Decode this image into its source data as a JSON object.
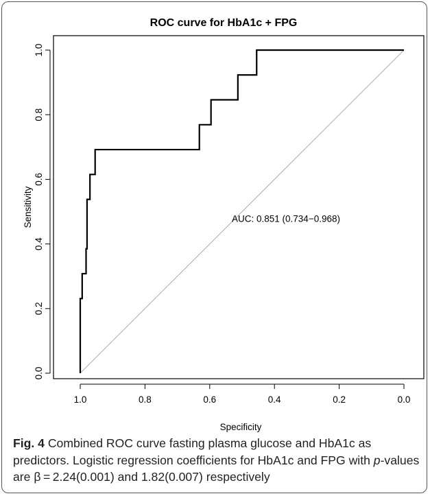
{
  "chart_data": {
    "type": "line",
    "title": "ROC curve for HbA1c + FPG",
    "xlabel": "Specificity",
    "ylabel": "Sensitivity",
    "xlim": [
      1.0,
      0.0
    ],
    "ylim": [
      0.0,
      1.0
    ],
    "x_reversed": true,
    "xticks": [
      1.0,
      0.8,
      0.6,
      0.4,
      0.2,
      0.0
    ],
    "xtick_labels": [
      "1.0",
      "0.8",
      "0.6",
      "0.4",
      "0.2",
      "0.0"
    ],
    "yticks": [
      0.0,
      0.2,
      0.4,
      0.6,
      0.8,
      1.0
    ],
    "ytick_labels": [
      "0.0",
      "0.2",
      "0.4",
      "0.6",
      "0.8",
      "1.0"
    ],
    "grid": false,
    "annotation": "AUC: 0.851 (0.734−0.968)",
    "annotation_pos": {
      "x": 0.5,
      "y": 0.5
    },
    "series": [
      {
        "color": "#000000",
        "x": [
          1.0,
          1.0,
          0.994,
          0.994,
          0.982,
          0.982,
          0.979,
          0.979,
          0.976,
          0.976,
          0.97,
          0.97,
          0.954,
          0.954,
          0.632,
          0.632,
          0.614,
          0.614,
          0.596,
          0.596,
          0.513,
          0.513,
          0.471,
          0.471,
          0.455,
          0.455,
          0.0
        ],
        "y": [
          0.0,
          0.231,
          0.231,
          0.308,
          0.308,
          0.385,
          0.385,
          0.538,
          0.538,
          0.538,
          0.538,
          0.615,
          0.615,
          0.692,
          0.692,
          0.769,
          0.769,
          0.769,
          0.769,
          0.846,
          0.846,
          0.923,
          0.923,
          0.923,
          0.923,
          1.0,
          1.0
        ]
      }
    ],
    "reference_line": {
      "color": "#aaaaaa",
      "x": [
        1.0,
        0.0
      ],
      "y": [
        0.0,
        1.0
      ]
    }
  },
  "caption": {
    "fig_label": "Fig. 4",
    "text_part1": " Combined ROC curve fasting plasma glucose and HbA1c as predictors. Logistic regression coefficients for HbA1c and FPG with ",
    "p_italic": "p",
    "text_part2": "-values are β = 2.24(0.001) and 1.82(0.007) respectively"
  }
}
